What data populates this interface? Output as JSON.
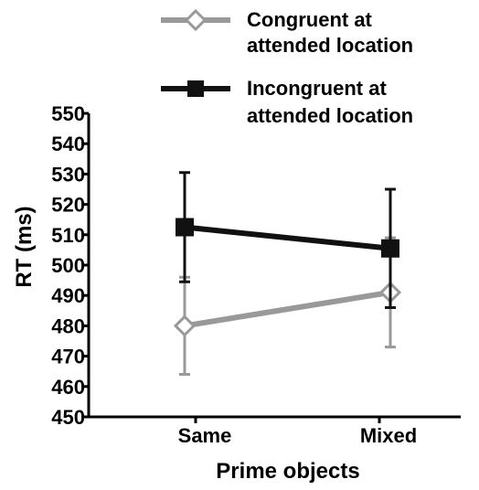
{
  "chart_data": {
    "type": "line",
    "title": "",
    "xlabel": "Prime objects",
    "ylabel": "RT (ms)",
    "categories": [
      "Same",
      "Mixed"
    ],
    "ylim": [
      450,
      550
    ],
    "yticks": [
      450,
      460,
      470,
      480,
      490,
      500,
      510,
      520,
      530,
      540,
      550
    ],
    "grid": false,
    "legend_position": "top",
    "series": [
      {
        "name": "Congruent at attended location",
        "values": [
          480,
          491
        ],
        "error": [
          16,
          18
        ],
        "color": "#999999",
        "marker": "diamond-open"
      },
      {
        "name": "Incongruent at attended location",
        "values": [
          512.5,
          505.5
        ],
        "error": [
          18,
          19.5
        ],
        "color": "#111111",
        "marker": "square-filled"
      }
    ]
  }
}
